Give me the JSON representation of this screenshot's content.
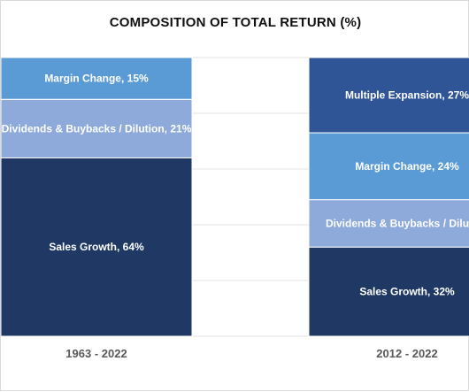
{
  "chart_data": {
    "type": "bar",
    "stacked": true,
    "normalized": true,
    "title": "COMPOSITION OF TOTAL RETURN (%)",
    "xlabel": "",
    "ylabel": "",
    "ylim": [
      0,
      100
    ],
    "grid": true,
    "categories": [
      "1963 - 2022",
      "2012 - 2022"
    ],
    "colors": {
      "Sales Growth": "#1f3864",
      "Dividends & Buybacks / Dilution": "#8eaadb",
      "Margin Change": "#5b9bd5",
      "Multiple Expansion": "#2f5597"
    },
    "series": [
      {
        "name": "Sales Growth",
        "values": [
          64,
          32
        ],
        "labels": [
          "Sales Growth, 64%",
          "Sales Growth, 32%"
        ]
      },
      {
        "name": "Dividends & Buybacks / Dilution",
        "values": [
          21,
          17
        ],
        "labels": [
          "Dividends & Buybacks / Dilution, 21%",
          "Dividends & Buybacks / Dilution"
        ]
      },
      {
        "name": "Margin Change",
        "values": [
          15,
          24
        ],
        "labels": [
          "Margin Change, 15%",
          "Margin Change, 24%"
        ]
      },
      {
        "name": "Multiple Expansion",
        "values": [
          0,
          27
        ],
        "labels": [
          "",
          "Multiple Expansion, 27%"
        ]
      }
    ]
  }
}
